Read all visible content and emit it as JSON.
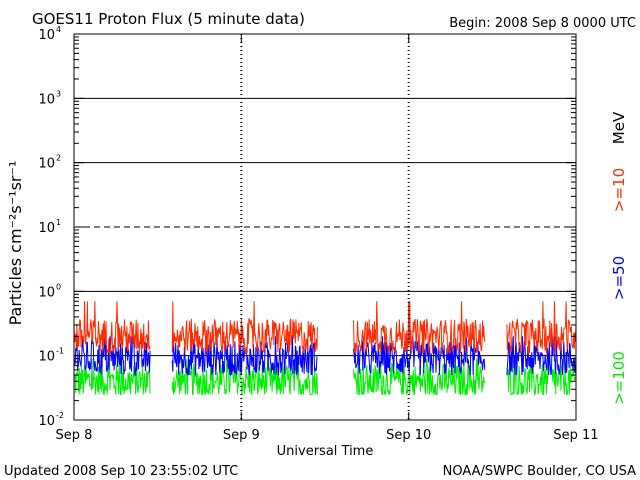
{
  "header": {
    "title": "GOES11 Proton Flux (5 minute data)",
    "begin": "Begin: 2008 Sep 8 0000 UTC"
  },
  "footer": {
    "updated": "Updated 2008 Sep 10 23:55:02 UTC",
    "credit": "NOAA/SWPC Boulder, CO USA"
  },
  "chart_data": {
    "type": "line",
    "title": "GOES11 Proton Flux (5 minute data)",
    "xlabel": "Universal Time",
    "ylabel": "Particles cm⁻²s⁻¹sr⁻¹",
    "yscale": "log",
    "ylim": [
      0.01,
      10000
    ],
    "xlim": [
      "2008-09-08",
      "2008-09-11"
    ],
    "x_ticks": [
      "Sep 8",
      "Sep 9",
      "Sep 10",
      "Sep 11"
    ],
    "y_ticks": [
      {
        "base": "10",
        "exp": "-2",
        "value": 0.01
      },
      {
        "base": "10",
        "exp": "-1",
        "value": 0.1
      },
      {
        "base": "10",
        "exp": "0",
        "value": 1
      },
      {
        "base": "10",
        "exp": "1",
        "value": 10
      },
      {
        "base": "10",
        "exp": "2",
        "value": 100
      },
      {
        "base": "10",
        "exp": "3",
        "value": 1000
      },
      {
        "base": "10",
        "exp": "4",
        "value": 10000
      }
    ],
    "threshold_lines": [
      {
        "value": 0.1,
        "style": "solid"
      },
      {
        "value": 1,
        "style": "solid"
      },
      {
        "value": 10,
        "style": "dashed"
      },
      {
        "value": 100,
        "style": "solid"
      },
      {
        "value": 1000,
        "style": "solid"
      }
    ],
    "data_gaps": [
      [
        "2008-09-08 11:00",
        "2008-09-08 14:00"
      ],
      [
        "2008-09-09 11:00",
        "2008-09-09 16:00"
      ],
      [
        "2008-09-10 11:00",
        "2008-09-10 14:00"
      ]
    ],
    "series": [
      {
        "name": ">=10",
        "color": "#ff2a00",
        "typical": 0.2,
        "min": 0.1,
        "max": 0.7
      },
      {
        "name": ">=50",
        "color": "#0000ff",
        "typical": 0.09,
        "min": 0.05,
        "max": 0.2
      },
      {
        "name": ">=100",
        "color": "#00ee00",
        "typical": 0.04,
        "min": 0.025,
        "max": 0.09
      }
    ],
    "legend_unit": "MeV",
    "legend_position": "right"
  }
}
